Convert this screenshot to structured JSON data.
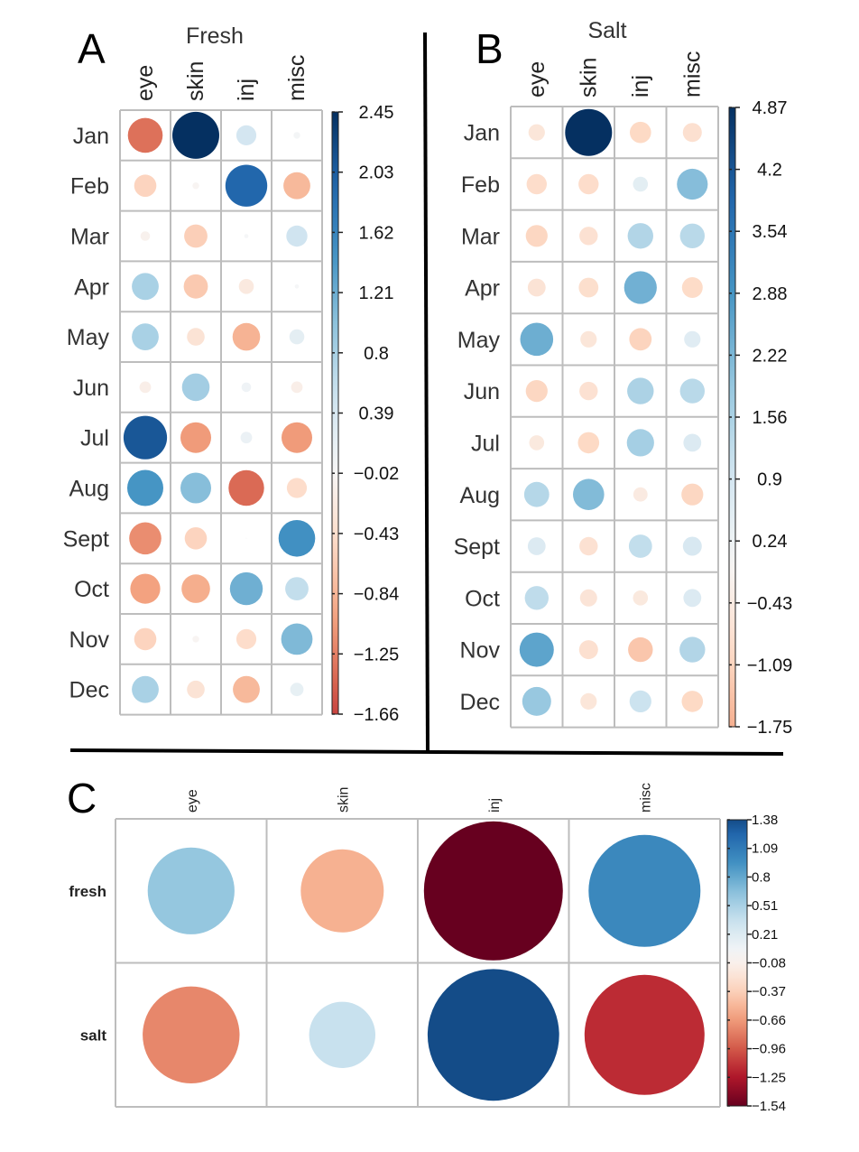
{
  "chart_data": [
    {
      "panel": "A",
      "type": "heatmap",
      "title": "Fresh",
      "columns": [
        "eye",
        "skin",
        "inj",
        "misc"
      ],
      "rows": [
        "Jan",
        "Feb",
        "Mar",
        "Apr",
        "May",
        "Jun",
        "Jul",
        "Aug",
        "Sept",
        "Oct",
        "Nov",
        "Dec"
      ],
      "values": [
        [
          -1.35,
          2.45,
          0.45,
          0.05
        ],
        [
          -0.55,
          -0.05,
          1.95,
          -0.8
        ],
        [
          -0.1,
          -0.6,
          0.02,
          0.5
        ],
        [
          0.8,
          -0.65,
          -0.25,
          0.02
        ],
        [
          0.8,
          -0.35,
          -0.85,
          0.25
        ],
        [
          -0.15,
          0.85,
          0.1,
          -0.15
        ],
        [
          2.1,
          -1.05,
          0.15,
          -1.05
        ],
        [
          1.45,
          1.05,
          -1.4,
          -0.45
        ],
        [
          -1.15,
          -0.55,
          0.0,
          1.5
        ],
        [
          -1.0,
          -0.9,
          1.2,
          0.6
        ],
        [
          -0.55,
          -0.05,
          -0.45,
          1.1
        ],
        [
          0.8,
          -0.35,
          -0.8,
          0.2
        ]
      ],
      "colorbar": {
        "min": -1.66,
        "max": 2.45,
        "ticks": [
          "2.45",
          "2.03",
          "1.62",
          "1.21",
          "0.8",
          "0.39",
          "−0.02",
          "−0.43",
          "−0.84",
          "−1.25",
          "−1.66"
        ]
      }
    },
    {
      "panel": "B",
      "type": "heatmap",
      "title": "Salt",
      "columns": [
        "eye",
        "skin",
        "inj",
        "misc"
      ],
      "rows": [
        "Jan",
        "Feb",
        "Mar",
        "Apr",
        "May",
        "Jun",
        "Jul",
        "Aug",
        "Sept",
        "Oct",
        "Nov",
        "Dec"
      ],
      "values": [
        [
          -0.6,
          4.87,
          -1.0,
          -0.8
        ],
        [
          -0.9,
          -0.9,
          0.5,
          2.1
        ],
        [
          -1.05,
          -0.75,
          1.45,
          1.35
        ],
        [
          -0.7,
          -0.85,
          2.35,
          -0.95
        ],
        [
          2.4,
          -0.6,
          -1.1,
          0.6
        ],
        [
          -1.05,
          -0.75,
          1.55,
          1.35
        ],
        [
          -0.5,
          -1.0,
          1.65,
          0.7
        ],
        [
          1.4,
          2.15,
          -0.45,
          -1.05
        ],
        [
          0.7,
          -0.75,
          1.2,
          0.8
        ],
        [
          1.25,
          -0.65,
          -0.5,
          0.7
        ],
        [
          2.6,
          -0.8,
          -1.35,
          1.45
        ],
        [
          1.85,
          -0.6,
          1.05,
          -1.0
        ]
      ],
      "colorbar": {
        "min": -1.75,
        "max": 4.87,
        "ticks": [
          "4.87",
          "4.2",
          "3.54",
          "2.88",
          "2.22",
          "1.56",
          "0.9",
          "0.24",
          "−0.43",
          "−1.09",
          "−1.75"
        ]
      }
    },
    {
      "panel": "C",
      "type": "heatmap",
      "title": "",
      "columns": [
        "eye",
        "skin",
        "inj",
        "misc"
      ],
      "rows": [
        "fresh",
        "salt"
      ],
      "values": [
        [
          0.6,
          -0.55,
          -1.54,
          1.0
        ],
        [
          -0.75,
          0.35,
          1.38,
          -1.15
        ]
      ],
      "colorbar": {
        "min": -1.54,
        "max": 1.38,
        "ticks": [
          "1.38",
          "1.09",
          "0.8",
          "0.51",
          "0.21",
          "−0.08",
          "−0.37",
          "−0.66",
          "−0.96",
          "−1.25",
          "−1.54"
        ]
      }
    }
  ],
  "colors": {
    "scale": [
      "#67001f",
      "#b2182b",
      "#d6604d",
      "#f4a582",
      "#fddbc7",
      "#f7f7f7",
      "#d1e5f0",
      "#92c5de",
      "#4393c3",
      "#2166ac",
      "#053061"
    ]
  }
}
